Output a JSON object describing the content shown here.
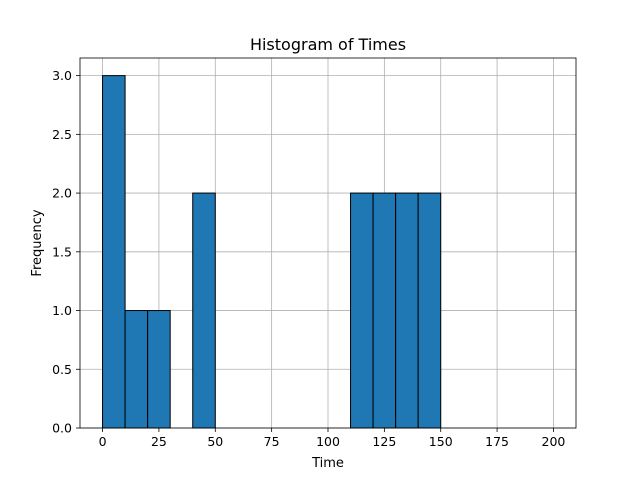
{
  "chart_data": {
    "type": "bar",
    "title": "Histogram of Times",
    "xlabel": "Time",
    "ylabel": "Frequency",
    "xlim": [
      -10,
      210
    ],
    "ylim": [
      0,
      3.15
    ],
    "xticks": [
      0,
      25,
      50,
      75,
      100,
      125,
      150,
      175,
      200
    ],
    "yticks": [
      0.0,
      0.5,
      1.0,
      1.5,
      2.0,
      2.5,
      3.0
    ],
    "ytick_labels": [
      "0.0",
      "0.5",
      "1.0",
      "1.5",
      "2.0",
      "2.5",
      "3.0"
    ],
    "grid": true,
    "bin_width": 10,
    "bins": [
      {
        "start": 0,
        "end": 10,
        "value": 3
      },
      {
        "start": 10,
        "end": 20,
        "value": 1
      },
      {
        "start": 20,
        "end": 30,
        "value": 1
      },
      {
        "start": 40,
        "end": 50,
        "value": 2
      },
      {
        "start": 110,
        "end": 120,
        "value": 2
      },
      {
        "start": 120,
        "end": 130,
        "value": 2
      },
      {
        "start": 130,
        "end": 140,
        "value": 2
      },
      {
        "start": 140,
        "end": 150,
        "value": 2
      }
    ],
    "bar_color": "#1f77b4"
  }
}
